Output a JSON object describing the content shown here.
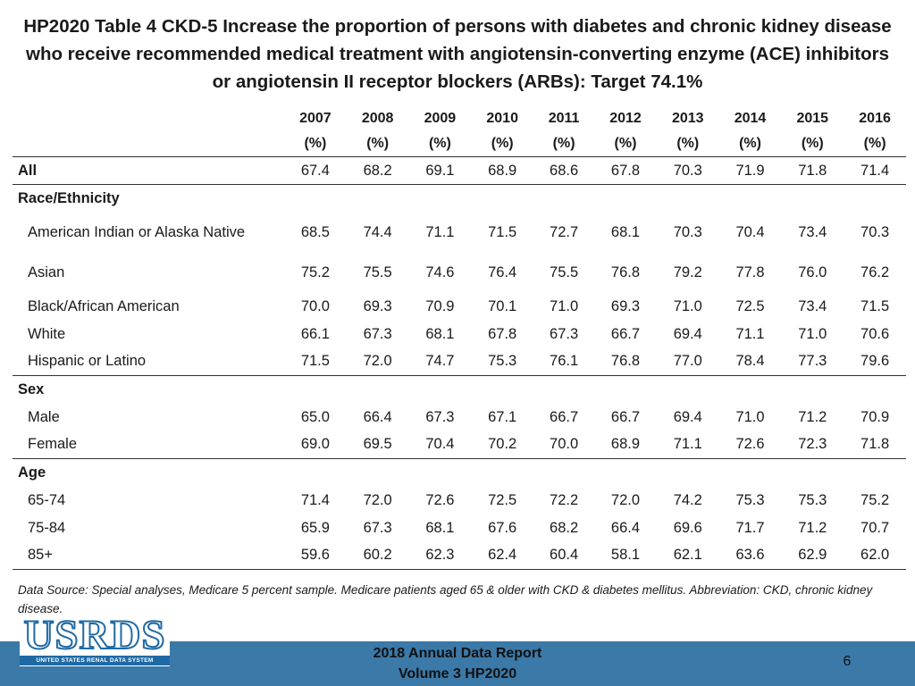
{
  "title": "HP2020 Table 4 CKD-5 Increase the proportion of persons with diabetes and chronic kidney disease who receive recommended medical treatment with angiotensin-converting enzyme (ACE) inhibitors or angiotensin II receptor blockers (ARBs): Target 74.1%",
  "table": {
    "years": [
      "2007",
      "2008",
      "2009",
      "2010",
      "2011",
      "2012",
      "2013",
      "2014",
      "2015",
      "2016"
    ],
    "unit": "(%)",
    "all": {
      "label": "All",
      "values": [
        "67.4",
        "68.2",
        "69.1",
        "68.9",
        "68.6",
        "67.8",
        "70.3",
        "71.9",
        "71.8",
        "71.4"
      ]
    },
    "race": {
      "label": "Race/Ethnicity",
      "rows": [
        {
          "label": "American Indian or Alaska Native",
          "values": [
            "68.5",
            "74.4",
            "71.1",
            "71.5",
            "72.7",
            "68.1",
            "70.3",
            "70.4",
            "73.4",
            "70.3"
          ]
        },
        {
          "label": "Asian",
          "values": [
            "75.2",
            "75.5",
            "74.6",
            "76.4",
            "75.5",
            "76.8",
            "79.2",
            "77.8",
            "76.0",
            "76.2"
          ]
        },
        {
          "label": "Black/African American",
          "values": [
            "70.0",
            "69.3",
            "70.9",
            "70.1",
            "71.0",
            "69.3",
            "71.0",
            "72.5",
            "73.4",
            "71.5"
          ]
        },
        {
          "label": "White",
          "values": [
            "66.1",
            "67.3",
            "68.1",
            "67.8",
            "67.3",
            "66.7",
            "69.4",
            "71.1",
            "71.0",
            "70.6"
          ]
        },
        {
          "label": "Hispanic or Latino",
          "values": [
            "71.5",
            "72.0",
            "74.7",
            "75.3",
            "76.1",
            "76.8",
            "77.0",
            "78.4",
            "77.3",
            "79.6"
          ]
        }
      ]
    },
    "sex": {
      "label": "Sex",
      "rows": [
        {
          "label": "Male",
          "values": [
            "65.0",
            "66.4",
            "67.3",
            "67.1",
            "66.7",
            "66.7",
            "69.4",
            "71.0",
            "71.2",
            "70.9"
          ]
        },
        {
          "label": "Female",
          "values": [
            "69.0",
            "69.5",
            "70.4",
            "70.2",
            "70.0",
            "68.9",
            "71.1",
            "72.6",
            "72.3",
            "71.8"
          ]
        }
      ]
    },
    "age": {
      "label": "Age",
      "rows": [
        {
          "label": "65-74",
          "values": [
            "71.4",
            "72.0",
            "72.6",
            "72.5",
            "72.2",
            "72.0",
            "74.2",
            "75.3",
            "75.3",
            "75.2"
          ]
        },
        {
          "label": "75-84",
          "values": [
            "65.9",
            "67.3",
            "68.1",
            "67.6",
            "68.2",
            "66.4",
            "69.6",
            "71.7",
            "71.2",
            "70.7"
          ]
        },
        {
          "label": "85+",
          "values": [
            "59.6",
            "60.2",
            "62.3",
            "62.4",
            "60.4",
            "58.1",
            "62.1",
            "63.6",
            "62.9",
            "62.0"
          ]
        }
      ]
    }
  },
  "source": "Data Source: Special analyses, Medicare 5 percent sample. Medicare patients aged 65 & older with CKD & diabetes mellitus. Abbreviation: CKD, chronic kidney disease.",
  "footer": {
    "logo_text": "USRDS",
    "logo_subtext": "UNITED STATES RENAL DATA SYSTEM",
    "report_line1": "2018 Annual Data Report",
    "report_line2": "Volume 3 HP2020",
    "page_number": "6"
  },
  "colors": {
    "footer_bar": "#3b79a8",
    "logo_blue": "#1f6aa5"
  }
}
